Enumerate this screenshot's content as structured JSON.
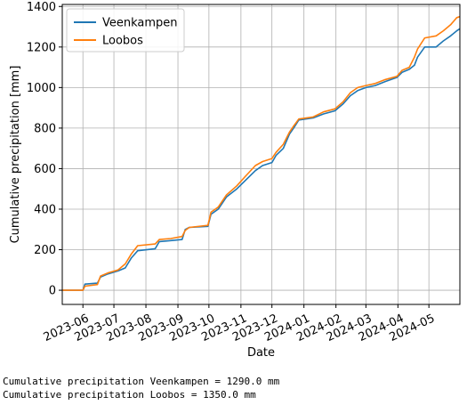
{
  "chart_data": {
    "type": "line",
    "title": "",
    "xlabel": "Date",
    "ylabel": "Cumulative precipitation [mm]",
    "x_tick_labels": [
      "2023-06",
      "2023-07",
      "2023-08",
      "2023-09",
      "2023-10",
      "2023-11",
      "2023-12",
      "2024-01",
      "2024-02",
      "2024-03",
      "2024-04",
      "2024-05"
    ],
    "y_ticks": [
      0,
      200,
      400,
      600,
      800,
      1000,
      1200,
      1400
    ],
    "xlim": [
      "2023-05-12",
      "2024-05-31"
    ],
    "ylim": [
      -70,
      1410
    ],
    "grid": true,
    "legend_position": "upper-left",
    "series": [
      {
        "name": "Veenkampen",
        "color": "#1f77b4",
        "points": [
          [
            "2023-05-12",
            0
          ],
          [
            "2023-06-01",
            0
          ],
          [
            "2023-06-03",
            30
          ],
          [
            "2023-06-15",
            35
          ],
          [
            "2023-06-18",
            65
          ],
          [
            "2023-06-25",
            80
          ],
          [
            "2023-07-05",
            95
          ],
          [
            "2023-07-12",
            110
          ],
          [
            "2023-07-18",
            160
          ],
          [
            "2023-07-24",
            195
          ],
          [
            "2023-08-10",
            205
          ],
          [
            "2023-08-14",
            240
          ],
          [
            "2023-08-25",
            245
          ],
          [
            "2023-09-05",
            250
          ],
          [
            "2023-09-08",
            300
          ],
          [
            "2023-09-12",
            310
          ],
          [
            "2023-09-30",
            315
          ],
          [
            "2023-10-03",
            375
          ],
          [
            "2023-10-10",
            400
          ],
          [
            "2023-10-18",
            460
          ],
          [
            "2023-10-28",
            500
          ],
          [
            "2023-11-05",
            540
          ],
          [
            "2023-11-15",
            590
          ],
          [
            "2023-11-22",
            615
          ],
          [
            "2023-12-01",
            630
          ],
          [
            "2023-12-05",
            665
          ],
          [
            "2023-12-12",
            700
          ],
          [
            "2023-12-18",
            770
          ],
          [
            "2023-12-22",
            800
          ],
          [
            "2023-12-27",
            840
          ],
          [
            "2024-01-10",
            850
          ],
          [
            "2024-01-20",
            870
          ],
          [
            "2024-01-31",
            885
          ],
          [
            "2024-02-08",
            920
          ],
          [
            "2024-02-15",
            960
          ],
          [
            "2024-02-22",
            985
          ],
          [
            "2024-03-01",
            1000
          ],
          [
            "2024-03-10",
            1010
          ],
          [
            "2024-03-20",
            1030
          ],
          [
            "2024-03-31",
            1050
          ],
          [
            "2024-04-05",
            1075
          ],
          [
            "2024-04-12",
            1090
          ],
          [
            "2024-04-17",
            1110
          ],
          [
            "2024-04-20",
            1150
          ],
          [
            "2024-04-27",
            1200
          ],
          [
            "2024-05-08",
            1200
          ],
          [
            "2024-05-15",
            1230
          ],
          [
            "2024-05-22",
            1255
          ],
          [
            "2024-05-28",
            1280
          ],
          [
            "2024-05-31",
            1290
          ]
        ]
      },
      {
        "name": "Loobos",
        "color": "#ff7f0e",
        "points": [
          [
            "2023-05-12",
            0
          ],
          [
            "2023-06-01",
            0
          ],
          [
            "2023-06-03",
            20
          ],
          [
            "2023-06-15",
            28
          ],
          [
            "2023-06-18",
            70
          ],
          [
            "2023-06-25",
            85
          ],
          [
            "2023-07-05",
            100
          ],
          [
            "2023-07-12",
            130
          ],
          [
            "2023-07-18",
            180
          ],
          [
            "2023-07-24",
            220
          ],
          [
            "2023-08-10",
            228
          ],
          [
            "2023-08-14",
            250
          ],
          [
            "2023-08-25",
            255
          ],
          [
            "2023-09-05",
            265
          ],
          [
            "2023-09-08",
            295
          ],
          [
            "2023-09-12",
            310
          ],
          [
            "2023-09-30",
            320
          ],
          [
            "2023-10-03",
            385
          ],
          [
            "2023-10-10",
            410
          ],
          [
            "2023-10-18",
            470
          ],
          [
            "2023-10-28",
            515
          ],
          [
            "2023-11-05",
            560
          ],
          [
            "2023-11-15",
            615
          ],
          [
            "2023-11-22",
            635
          ],
          [
            "2023-12-01",
            650
          ],
          [
            "2023-12-05",
            680
          ],
          [
            "2023-12-12",
            720
          ],
          [
            "2023-12-18",
            780
          ],
          [
            "2023-12-22",
            810
          ],
          [
            "2023-12-27",
            845
          ],
          [
            "2024-01-10",
            855
          ],
          [
            "2024-01-20",
            880
          ],
          [
            "2024-01-31",
            895
          ],
          [
            "2024-02-08",
            930
          ],
          [
            "2024-02-15",
            975
          ],
          [
            "2024-02-22",
            1000
          ],
          [
            "2024-03-01",
            1010
          ],
          [
            "2024-03-10",
            1020
          ],
          [
            "2024-03-20",
            1040
          ],
          [
            "2024-03-31",
            1055
          ],
          [
            "2024-04-05",
            1085
          ],
          [
            "2024-04-12",
            1100
          ],
          [
            "2024-04-17",
            1150
          ],
          [
            "2024-04-20",
            1190
          ],
          [
            "2024-04-27",
            1245
          ],
          [
            "2024-05-08",
            1255
          ],
          [
            "2024-05-15",
            1280
          ],
          [
            "2024-05-22",
            1310
          ],
          [
            "2024-05-28",
            1345
          ],
          [
            "2024-05-31",
            1350
          ]
        ]
      }
    ]
  },
  "output_text": [
    "Cumulative precipitation Veenkampen = 1290.0 mm",
    "Cumulative precipitation Loobos = 1350.0 mm"
  ]
}
